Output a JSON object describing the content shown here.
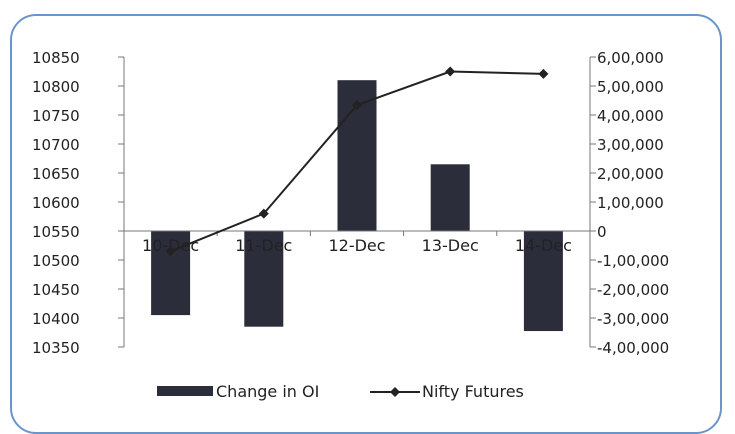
{
  "chart_data": {
    "type": "bar-line-combo",
    "categories": [
      "10-Dec",
      "11-Dec",
      "12-Dec",
      "13-Dec",
      "14-Dec"
    ],
    "series": [
      {
        "name": "Change in OI",
        "type": "bar",
        "axis": "right",
        "color": "#2b2d3a",
        "values": [
          -290000,
          -330000,
          520000,
          230000,
          -345000
        ]
      },
      {
        "name": "Nifty Futures",
        "type": "line",
        "axis": "left",
        "color": "#222222",
        "marker": "diamond",
        "values": [
          10515,
          10580,
          10767,
          10825,
          10821
        ]
      }
    ],
    "left_axis": {
      "ylim": [
        10350,
        10850
      ],
      "ticks": [
        "10850",
        "10800",
        "10750",
        "10700",
        "10650",
        "10600",
        "10550",
        "10500",
        "10450",
        "10400",
        "10350"
      ]
    },
    "right_axis": {
      "ylim": [
        -400000,
        600000
      ],
      "ticks": [
        "6,00,000",
        "5,00,000",
        "4,00,000",
        "3,00,000",
        "2,00,000",
        "1,00,000",
        "0",
        "-1,00,000",
        "-2,00,000",
        "-3,00,000",
        "-4,00,000"
      ]
    },
    "grid": false,
    "legend_position": "bottom"
  }
}
